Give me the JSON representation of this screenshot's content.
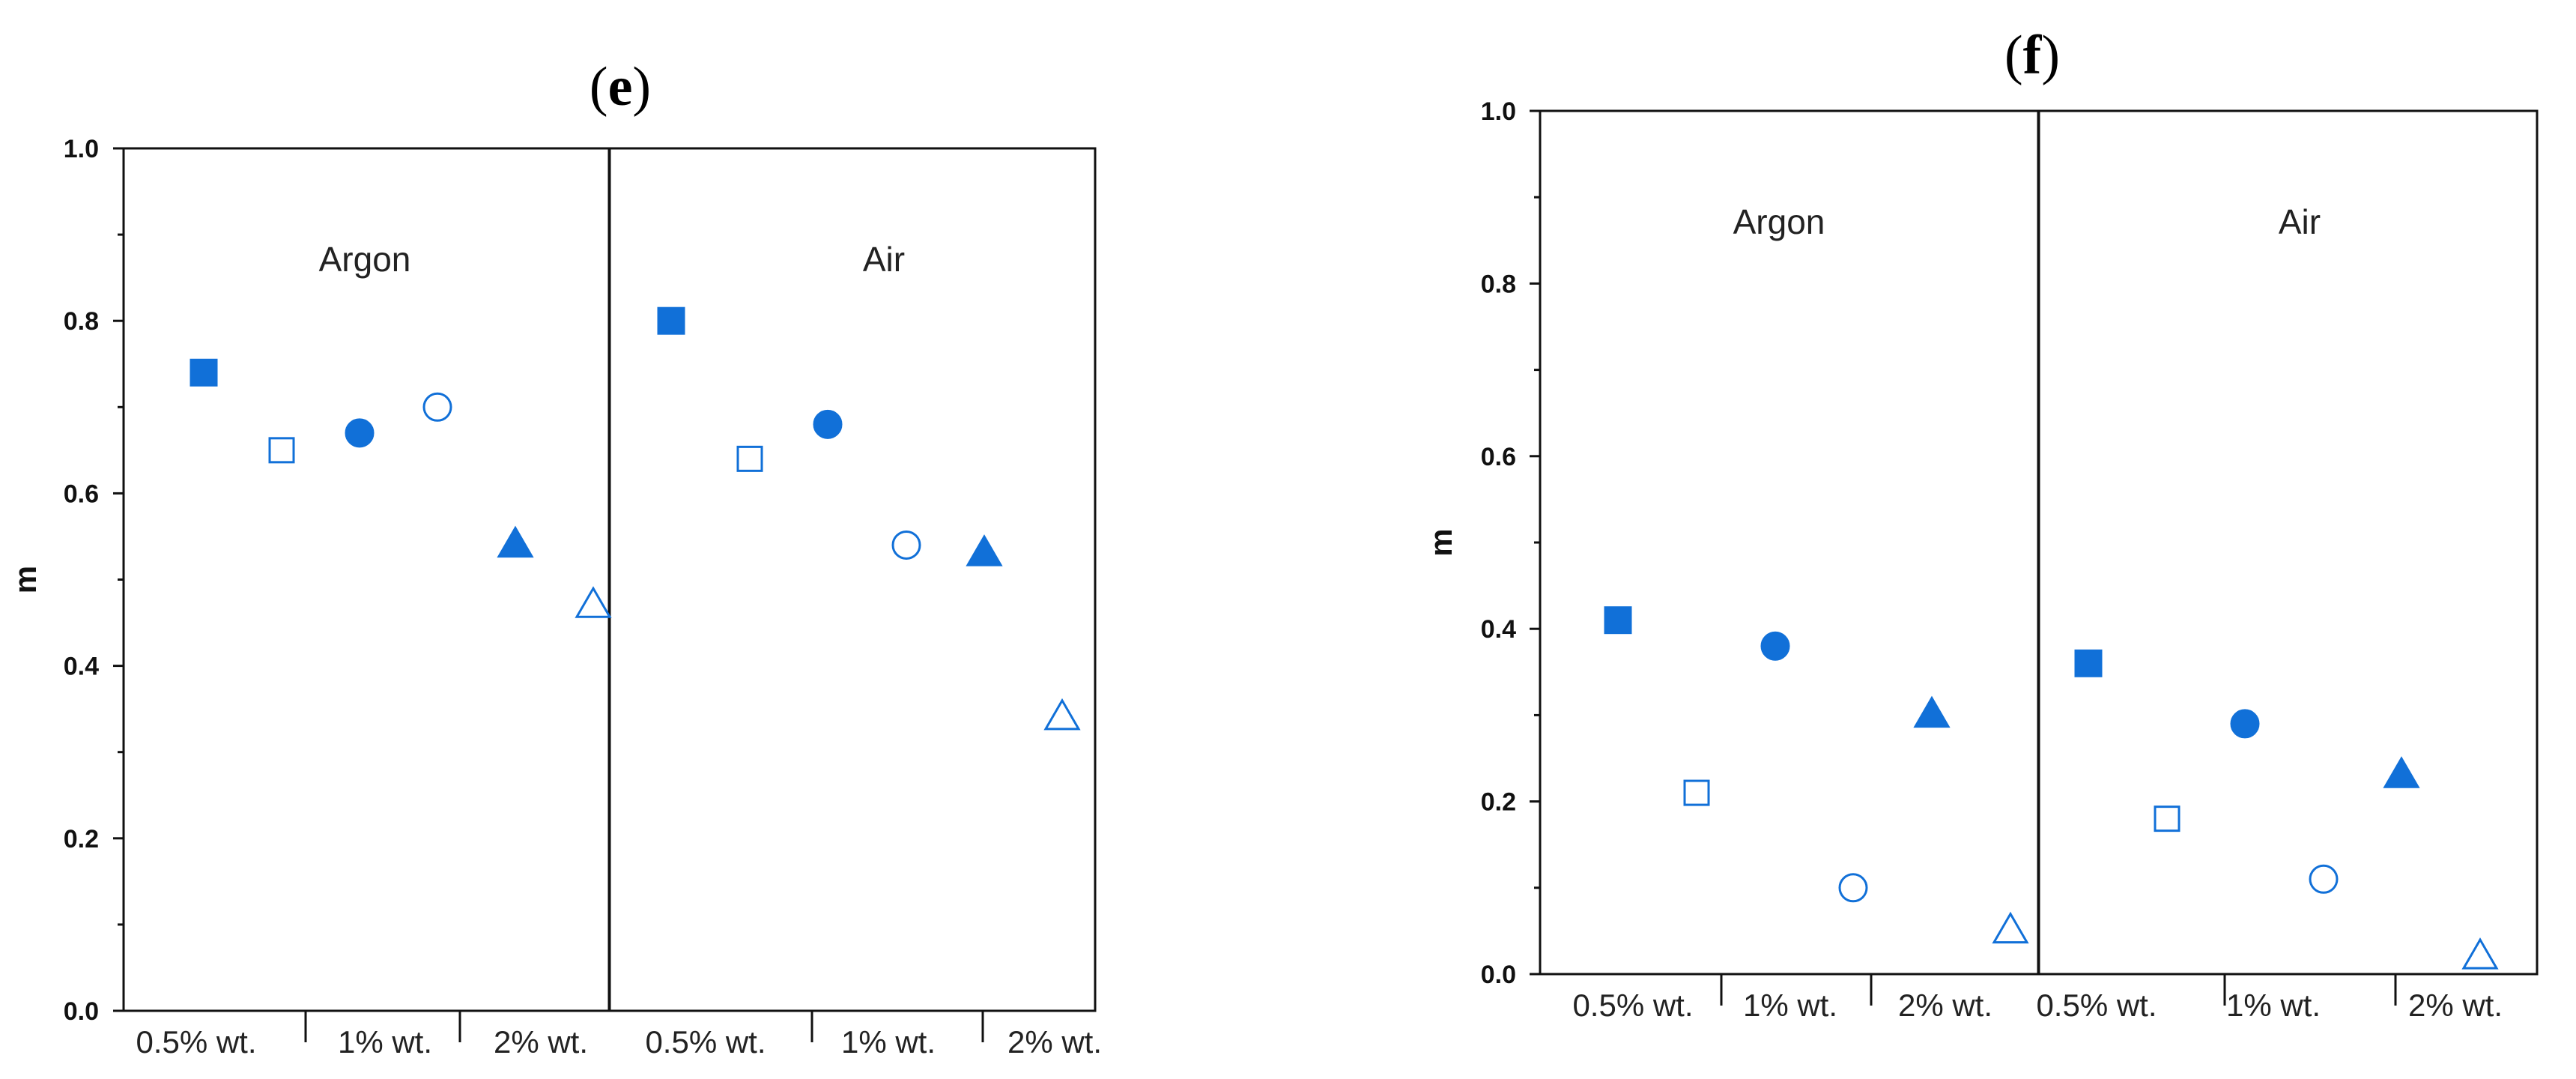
{
  "chart_data": [
    {
      "type": "scatter",
      "panel_label": "e",
      "ylabel": "m",
      "ylim": [
        0,
        1.0
      ],
      "yticks": [
        "0.0",
        "0.2",
        "0.4",
        "0.6",
        "0.8",
        "1.0"
      ],
      "ytick_values": [
        0,
        0.2,
        0.4,
        0.6,
        0.8,
        1.0
      ],
      "regions": [
        {
          "name": "Argon",
          "groups": [
            "0.5% wt.",
            "1% wt.",
            "2% wt."
          ],
          "points": [
            {
              "marker": "square-filled",
              "y": 0.74
            },
            {
              "marker": "square-open",
              "y": 0.65
            },
            {
              "marker": "circle-filled",
              "y": 0.67
            },
            {
              "marker": "circle-open",
              "y": 0.7
            },
            {
              "marker": "triangle-filled",
              "y": 0.54
            },
            {
              "marker": "triangle-open",
              "y": 0.47
            }
          ]
        },
        {
          "name": "Air",
          "groups": [
            "0.5% wt.",
            "1% wt.",
            "2% wt."
          ],
          "points": [
            {
              "marker": "square-filled",
              "y": 0.8
            },
            {
              "marker": "square-open",
              "y": 0.64
            },
            {
              "marker": "circle-filled",
              "y": 0.68
            },
            {
              "marker": "circle-open",
              "y": 0.54
            },
            {
              "marker": "triangle-filled",
              "y": 0.53
            },
            {
              "marker": "triangle-open",
              "y": 0.34
            }
          ]
        }
      ]
    },
    {
      "type": "scatter",
      "panel_label": "f",
      "ylabel": "m",
      "ylim": [
        0,
        1.0
      ],
      "yticks": [
        "0.0",
        "0.2",
        "0.4",
        "0.6",
        "0.8",
        "1.0"
      ],
      "ytick_values": [
        0,
        0.2,
        0.4,
        0.6,
        0.8,
        1.0
      ],
      "regions": [
        {
          "name": "Argon",
          "groups": [
            "0.5% wt.",
            "1% wt.",
            "2% wt."
          ],
          "points": [
            {
              "marker": "square-filled",
              "y": 0.41
            },
            {
              "marker": "square-open",
              "y": 0.21
            },
            {
              "marker": "circle-filled",
              "y": 0.38
            },
            {
              "marker": "circle-open",
              "y": 0.1
            },
            {
              "marker": "triangle-filled",
              "y": 0.3
            },
            {
              "marker": "triangle-open",
              "y": 0.05
            }
          ]
        },
        {
          "name": "Air",
          "groups": [
            "0.5% wt.",
            "1% wt.",
            "2% wt."
          ],
          "points": [
            {
              "marker": "square-filled",
              "y": 0.36
            },
            {
              "marker": "square-open",
              "y": 0.18
            },
            {
              "marker": "circle-filled",
              "y": 0.29
            },
            {
              "marker": "circle-open",
              "y": 0.11
            },
            {
              "marker": "triangle-filled",
              "y": 0.23
            },
            {
              "marker": "triangle-open",
              "y": 0.02
            }
          ]
        }
      ]
    }
  ],
  "style": {
    "marker_color": "#1170d8",
    "axis_color": "#111111"
  }
}
